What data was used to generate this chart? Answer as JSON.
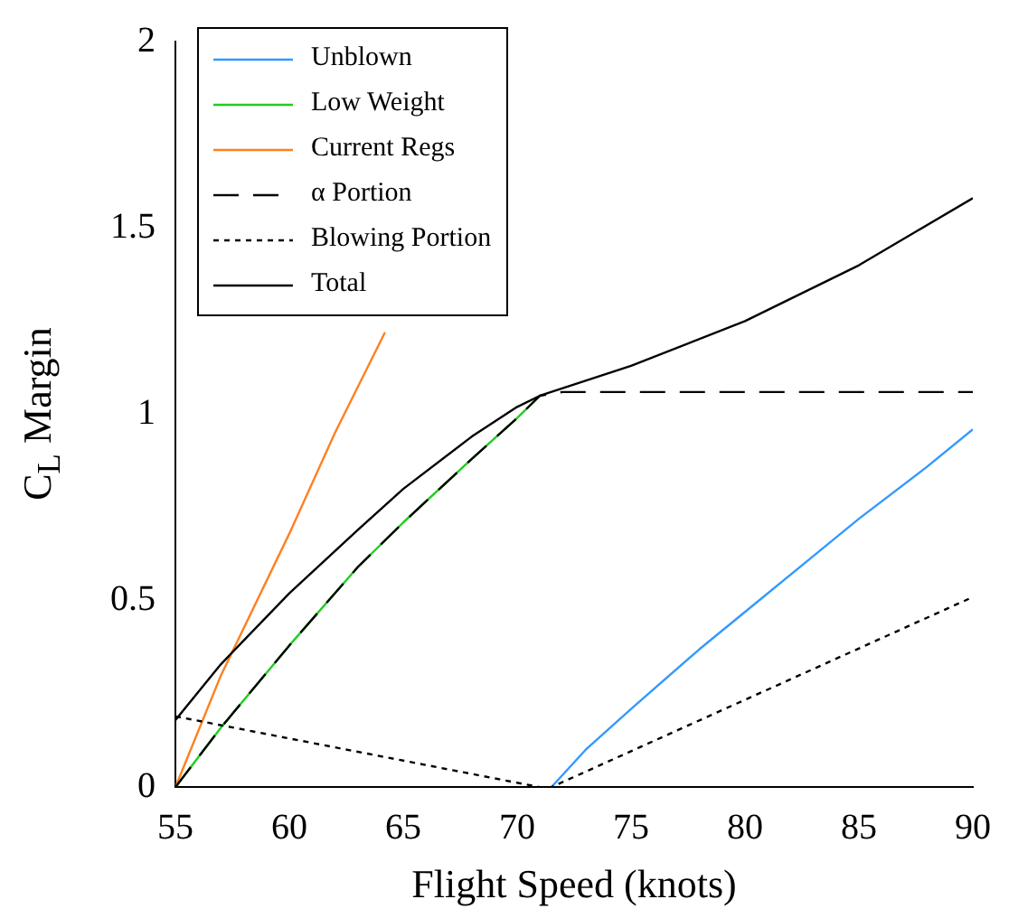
{
  "chart_data": {
    "type": "line",
    "xlabel": "Flight Speed (knots)",
    "ylabel": "C$_{L}$ Margin",
    "xlim": [
      55,
      90
    ],
    "xticks": [
      55,
      60,
      65,
      70,
      75,
      80,
      85,
      90
    ],
    "ylim": [
      0,
      2
    ],
    "yticks": [
      0,
      0.5,
      1,
      1.5,
      2
    ],
    "grid": false,
    "legend": "top left",
    "marker": "none",
    "series": [
      {
        "name": "Unblown",
        "color": "#3399ff",
        "x": [
          71.5,
          73,
          75,
          78,
          80,
          83,
          85,
          88,
          90
        ],
        "values": [
          0,
          0.1,
          0.21,
          0.37,
          0.47,
          0.62,
          0.72,
          0.86,
          0.96
        ]
      },
      {
        "name": "Low Weight",
        "color": "#22cc22",
        "x": [
          55,
          57,
          60,
          63,
          65,
          68,
          70,
          71
        ],
        "values": [
          0,
          0.16,
          0.38,
          0.59,
          0.71,
          0.88,
          0.99,
          1.05
        ]
      },
      {
        "name": "Current Regs",
        "color": "#ff8020",
        "x": [
          55,
          57,
          60,
          62,
          64.2
        ],
        "values": [
          0,
          0.3,
          0.68,
          0.95,
          1.22
        ]
      },
      {
        "name": "α Portion",
        "color": "#000000",
        "line_style": "dashed",
        "x": [
          55,
          57,
          60,
          63,
          65,
          68,
          70,
          71,
          72,
          90
        ],
        "values": [
          0,
          0.16,
          0.38,
          0.59,
          0.71,
          0.88,
          0.99,
          1.05,
          1.06,
          1.06
        ]
      },
      {
        "name": "Blowing Portion",
        "color": "#000000",
        "line_style": "dotted",
        "x": [
          55,
          71,
          71.5,
          90
        ],
        "values": [
          0.19,
          0,
          0,
          0.51
        ]
      },
      {
        "name": "Total",
        "color": "#000000",
        "x": [
          55,
          57,
          60,
          63,
          65,
          68,
          70,
          71,
          72,
          75,
          80,
          85,
          90
        ],
        "values": [
          0.18,
          0.33,
          0.52,
          0.69,
          0.8,
          0.94,
          1.02,
          1.05,
          1.07,
          1.13,
          1.25,
          1.4,
          1.58
        ]
      }
    ]
  }
}
